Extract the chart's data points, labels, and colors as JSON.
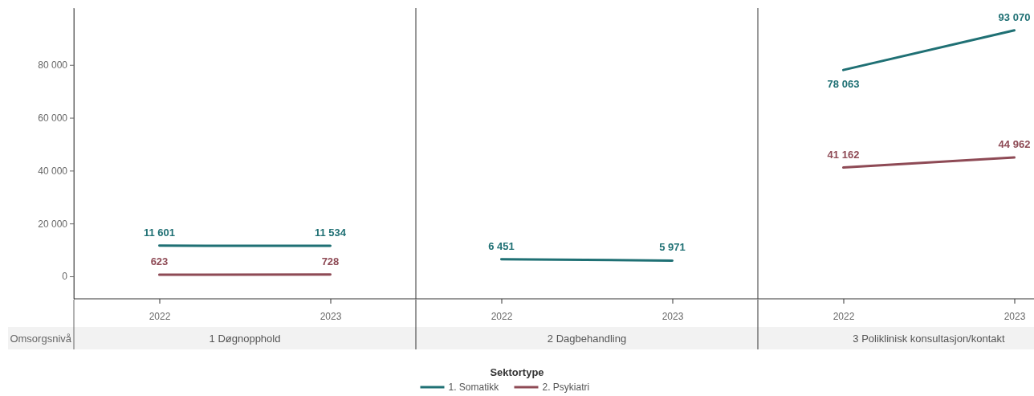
{
  "chart_data": [
    {
      "type": "line",
      "title": "1 Døgnopphold",
      "annotations": [
        "Omsorgsnivå"
      ],
      "categories": [
        "2022",
        "2023"
      ],
      "ylim": [
        -8500,
        101500
      ],
      "yticks": [
        {
          "value": 0,
          "label": "0"
        },
        {
          "value": 20000,
          "label": "20 000"
        },
        {
          "value": 40000,
          "label": "40 000"
        },
        {
          "value": 60000,
          "label": "60 000"
        },
        {
          "value": 80000,
          "label": "80 000"
        }
      ],
      "legend": "bottom",
      "legend_title": "Sektortype",
      "marker": "none",
      "series": [
        {
          "name": "1. Somatikk",
          "color": "#1f7074",
          "values": [
            11601,
            11534
          ],
          "value_labels": [
            "11 601",
            "11 534"
          ]
        },
        {
          "name": "2. Psykiatri",
          "color": "#8e4a55",
          "values": [
            623,
            728
          ],
          "value_labels": [
            "623",
            "728"
          ]
        }
      ]
    },
    {
      "type": "line",
      "title": "2 Dagbehandling",
      "categories": [
        "2022",
        "2023"
      ],
      "ylim": [
        -8500,
        101500
      ],
      "tick_labels": "x",
      "marker": "none",
      "series": [
        {
          "color": "#1f7074",
          "values": [
            6451,
            5971
          ],
          "value_labels": [
            "6 451",
            "5 971"
          ]
        }
      ]
    },
    {
      "type": "line",
      "title": "3 Poliklinisk konsultasjon/kontakt",
      "categories": [
        "2022",
        "2023"
      ],
      "ylim": [
        -8500,
        101500
      ],
      "tick_labels": "x",
      "marker": "none",
      "series": [
        {
          "color": "#1f7074",
          "values": [
            78063,
            93070
          ],
          "value_labels": [
            "78 063",
            "93 070"
          ]
        },
        {
          "color": "#8e4a55",
          "values": [
            41162,
            44962
          ],
          "value_labels": [
            "41 162",
            "44 962"
          ]
        }
      ]
    }
  ]
}
